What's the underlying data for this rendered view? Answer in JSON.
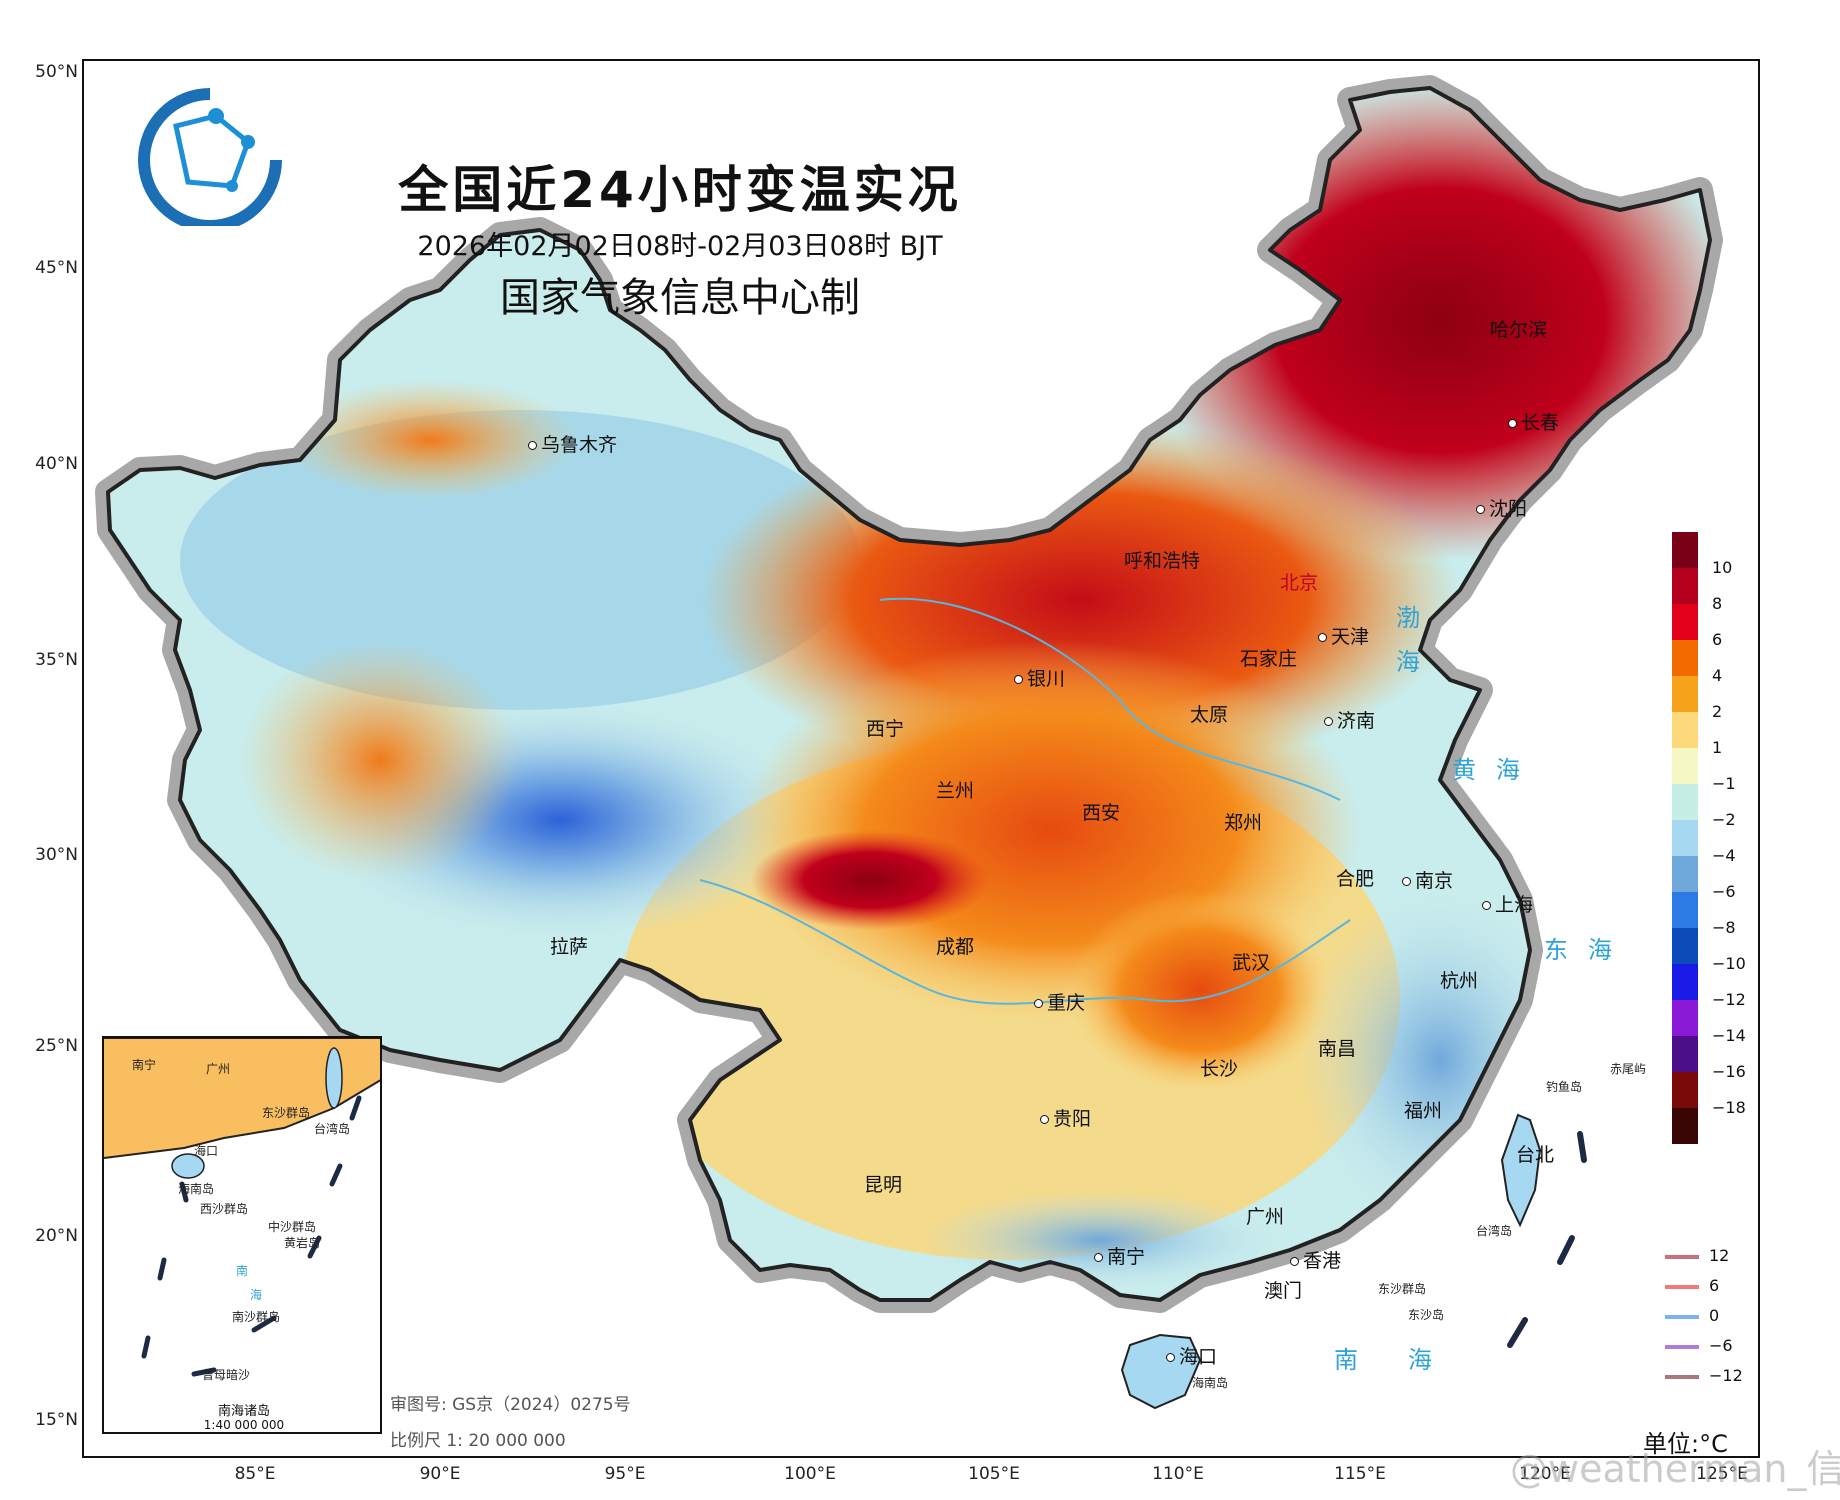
{
  "title": "全国近24小时变温实况",
  "subtitle": "2026年02月02日08时-02月03日08时 BJT",
  "producer": "国家气象信息中心制",
  "logo": "nmic-globe-logo",
  "lat_ticks": [
    "50°N",
    "45°N",
    "40°N",
    "35°N",
    "30°N",
    "25°N",
    "20°N",
    "15°N"
  ],
  "lon_ticks": [
    "85°E",
    "90°E",
    "95°E",
    "100°E",
    "105°E",
    "110°E",
    "115°E",
    "120°E",
    "125°E"
  ],
  "cities": [
    {
      "name": "乌鲁木齐"
    },
    {
      "name": "哈尔滨"
    },
    {
      "name": "长春"
    },
    {
      "name": "沈阳"
    },
    {
      "name": "呼和浩特"
    },
    {
      "name": "北京"
    },
    {
      "name": "天津"
    },
    {
      "name": "石家庄"
    },
    {
      "name": "银川"
    },
    {
      "name": "太原"
    },
    {
      "name": "济南"
    },
    {
      "name": "西宁"
    },
    {
      "name": "兰州"
    },
    {
      "name": "西安"
    },
    {
      "name": "郑州"
    },
    {
      "name": "合肥"
    },
    {
      "name": "南京"
    },
    {
      "name": "上海"
    },
    {
      "name": "拉萨"
    },
    {
      "name": "成都"
    },
    {
      "name": "武汉"
    },
    {
      "name": "杭州"
    },
    {
      "name": "重庆"
    },
    {
      "name": "长沙"
    },
    {
      "name": "南昌"
    },
    {
      "name": "福州"
    },
    {
      "name": "贵阳"
    },
    {
      "name": "台北"
    },
    {
      "name": "昆明"
    },
    {
      "name": "广州"
    },
    {
      "name": "南宁"
    },
    {
      "name": "香港"
    },
    {
      "name": "澳门"
    },
    {
      "name": "海口"
    }
  ],
  "seas": {
    "bohai": "渤海",
    "huanghai": "黄海",
    "donghai": "东海",
    "nanhai": "南海"
  },
  "islands": {
    "diaoyu": "钓鱼岛",
    "chiwei": "赤尾屿",
    "taiwan": "台湾岛",
    "dongsha": "东沙群岛",
    "dongsha_island": "东沙岛",
    "hainan": "海南岛"
  },
  "fill_legend": {
    "labels": [
      "10",
      "8",
      "6",
      "4",
      "2",
      "1",
      "−1",
      "−2",
      "−4",
      "−6",
      "−8",
      "−10",
      "−12",
      "−14",
      "−16",
      "−18"
    ],
    "colors": [
      "#7a0018",
      "#b4001e",
      "#e2001a",
      "#f26b00",
      "#f7a21b",
      "#fcd97a",
      "#f5f7c4",
      "#c5efe4",
      "#a7d8f2",
      "#6fa8db",
      "#2c7be5",
      "#0b4cb8",
      "#1a1ae6",
      "#8a1ad6",
      "#4b0f8a",
      "#7a0a0a",
      "#3a0505"
    ]
  },
  "line_legend": [
    {
      "label": "12",
      "color": "#c8707a"
    },
    {
      "label": "6",
      "color": "#ef7b7b"
    },
    {
      "label": "0",
      "color": "#7fb0f0"
    },
    {
      "label": "−6",
      "color": "#b07ad8"
    },
    {
      "label": "−12",
      "color": "#a8787a"
    }
  ],
  "unit": "单位:°C",
  "review_no": "审图号: GS京（2024）0275号",
  "scale": "比例尺 1: 20 000 000",
  "inset": {
    "title": "南海诸岛",
    "scale": "1:40 000 000",
    "labels": [
      "南宁",
      "广州",
      "东沙群岛",
      "台湾岛",
      "海口",
      "海南岛",
      "西沙群岛",
      "中沙群岛",
      "黄岩岛",
      "南",
      "海",
      "南沙群岛",
      "曾母暗沙"
    ]
  },
  "watermark": "@weatherman_信欣"
}
